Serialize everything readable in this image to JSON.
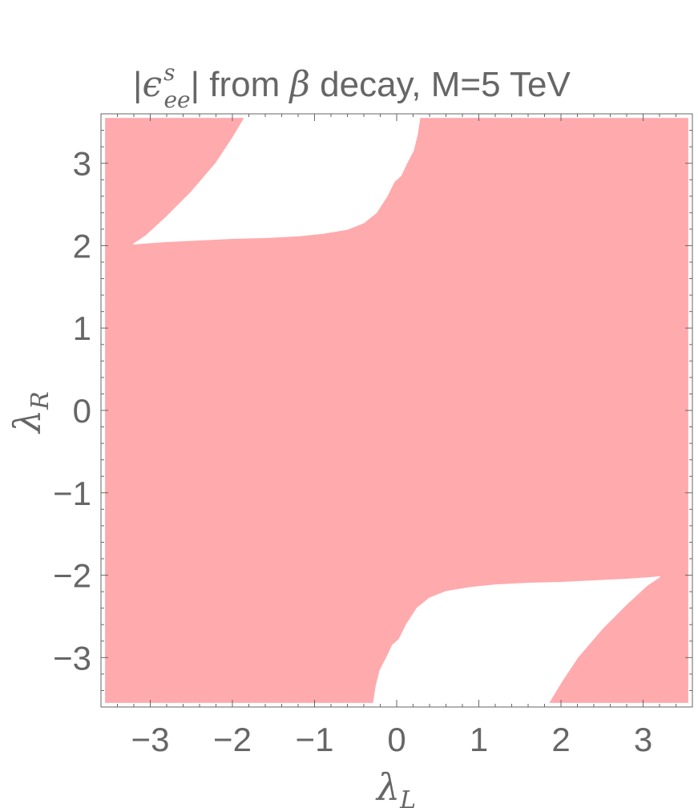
{
  "chart_data": {
    "type": "region",
    "title": {
      "prefix": "|",
      "epsilon": "ϵ",
      "subscript": "ee",
      "superscript": "s",
      "after_bar": "| from ",
      "beta": "β",
      "suffix": " decay, M=5 TeV"
    },
    "xlabel": {
      "symbol": "λ",
      "subscript": "L"
    },
    "ylabel": {
      "symbol": "λ",
      "subscript": "R"
    },
    "xlim": [
      -3.6,
      3.6
    ],
    "ylim": [
      -3.6,
      3.6
    ],
    "plot_region": [
      -3.55,
      3.55
    ],
    "x_ticks": [
      -3,
      -2,
      -1,
      0,
      1,
      2,
      3
    ],
    "y_ticks": [
      -3,
      -2,
      -1,
      0,
      1,
      2,
      3
    ],
    "x_tick_labels": [
      "−3",
      "−2",
      "−1",
      "0",
      "1",
      "2",
      "3"
    ],
    "y_tick_labels": [
      "−3",
      "−2",
      "−1",
      "0",
      "1",
      "2",
      "3"
    ],
    "grid": false,
    "excluded_color": "#ffaaad",
    "allowed_color": "#ffffff",
    "axis_color": "#666666",
    "allowed_regions": [
      {
        "name": "upper-left",
        "boundary": [
          [
            -3.2,
            2.02
          ],
          [
            -3.1,
            2.03
          ],
          [
            -2.8,
            2.05
          ],
          [
            -2.4,
            2.07
          ],
          [
            -2.0,
            2.09
          ],
          [
            -1.6,
            2.1
          ],
          [
            -1.2,
            2.12
          ],
          [
            -0.9,
            2.15
          ],
          [
            -0.6,
            2.2
          ],
          [
            -0.4,
            2.28
          ],
          [
            -0.25,
            2.4
          ],
          [
            -0.12,
            2.6
          ],
          [
            -0.03,
            2.78
          ],
          [
            0.05,
            2.85
          ],
          [
            0.12,
            3.0
          ],
          [
            0.2,
            3.15
          ],
          [
            0.25,
            3.35
          ],
          [
            0.28,
            3.55
          ],
          [
            -1.85,
            3.55
          ],
          [
            -2.0,
            3.3
          ],
          [
            -2.2,
            3.0
          ],
          [
            -2.5,
            2.65
          ],
          [
            -2.8,
            2.35
          ],
          [
            -3.05,
            2.12
          ]
        ]
      },
      {
        "name": "lower-right",
        "boundary": [
          [
            3.2,
            -2.02
          ],
          [
            3.1,
            -2.03
          ],
          [
            2.8,
            -2.05
          ],
          [
            2.4,
            -2.07
          ],
          [
            2.0,
            -2.09
          ],
          [
            1.6,
            -2.1
          ],
          [
            1.2,
            -2.12
          ],
          [
            0.9,
            -2.15
          ],
          [
            0.6,
            -2.2
          ],
          [
            0.4,
            -2.28
          ],
          [
            0.25,
            -2.4
          ],
          [
            0.12,
            -2.6
          ],
          [
            0.03,
            -2.78
          ],
          [
            -0.05,
            -2.85
          ],
          [
            -0.12,
            -3.0
          ],
          [
            -0.2,
            -3.15
          ],
          [
            -0.25,
            -3.35
          ],
          [
            -0.28,
            -3.55
          ],
          [
            1.85,
            -3.55
          ],
          [
            2.0,
            -3.3
          ],
          [
            2.2,
            -3.0
          ],
          [
            2.5,
            -2.65
          ],
          [
            2.8,
            -2.35
          ],
          [
            3.05,
            -2.12
          ]
        ]
      }
    ]
  }
}
